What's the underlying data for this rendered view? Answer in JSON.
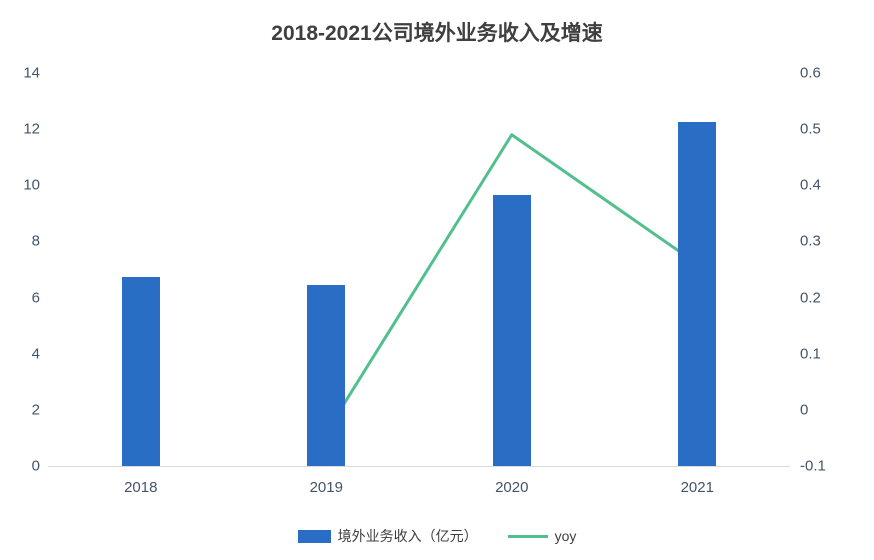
{
  "title": "2018-2021公司境外业务收入及增速",
  "chart_data": {
    "type": "bar+line",
    "title": "2018-2021公司境外业务收入及增速",
    "categories": [
      "2018",
      "2019",
      "2020",
      "2021"
    ],
    "series": [
      {
        "name": "境外业务收入（亿元）",
        "type": "bar",
        "axis": "left",
        "color": "#2a6dc5",
        "values": [
          6.75,
          6.45,
          9.65,
          12.25
        ]
      },
      {
        "name": "yoy",
        "type": "line",
        "axis": "right",
        "color": "#52c08e",
        "values": [
          null,
          -0.04,
          0.49,
          0.26
        ]
      }
    ],
    "left_axis": {
      "min": 0,
      "max": 14,
      "step": 2,
      "ticks": [
        "0",
        "2",
        "4",
        "6",
        "8",
        "10",
        "12",
        "14"
      ]
    },
    "right_axis": {
      "min": -0.1,
      "max": 0.6,
      "step": 0.1,
      "ticks": [
        "-0.1",
        "0",
        "0.1",
        "0.2",
        "0.3",
        "0.4",
        "0.5",
        "0.6"
      ]
    },
    "grid": false,
    "legend_position": "bottom"
  }
}
